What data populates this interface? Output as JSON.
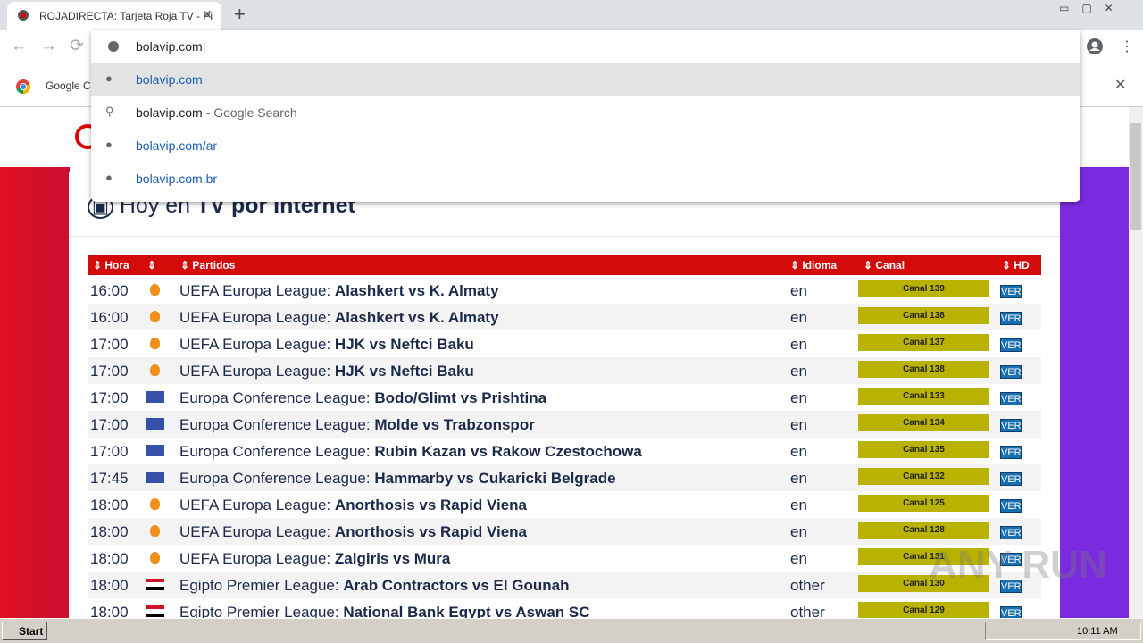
{
  "browser": {
    "tab_title": "ROJADIRECTA: Tarjeta Roja TV - Pi",
    "address": "bolavip.com",
    "suggestions": [
      {
        "text": "bolavip.com"
      },
      {
        "text": "bolavip.com",
        "suffix": "- Google Search"
      },
      {
        "text": "bolavip.com",
        "suffix": "/ar"
      },
      {
        "text": "bolavip.com",
        "suffix": ".br"
      }
    ],
    "infobar": "Google Cl"
  },
  "page": {
    "heading": {
      "light": "Hoy en",
      "mid": "TV",
      "bold": "por Internet"
    },
    "table": {
      "headers": [
        "Hora",
        "Partidos",
        "Idioma",
        "Canal",
        "HD"
      ],
      "rows": [
        {
          "time": "16:00",
          "icon": [
            "#f0901c"
          ],
          "league": "UEFA Europa League:",
          "match": "Alashkert vs K. Almaty",
          "lang": "en",
          "canal": "Canal 139",
          "hd": "VER"
        },
        {
          "time": "16:00",
          "icon": [
            "#f0901c"
          ],
          "league": "UEFA Europa League:",
          "match": "Alashkert vs K. Almaty",
          "lang": "en",
          "canal": "Canal 138",
          "hd": "VER"
        },
        {
          "time": "17:00",
          "icon": [
            "#f0901c"
          ],
          "league": "UEFA Europa League:",
          "match": "HJK vs Neftci Baku",
          "lang": "en",
          "canal": "Canal 137",
          "hd": "VER"
        },
        {
          "time": "17:00",
          "icon": [
            "#f0901c"
          ],
          "league": "UEFA Europa League:",
          "match": "HJK vs Neftci Baku",
          "lang": "en",
          "canal": "Canal 138",
          "hd": "VER"
        },
        {
          "time": "17:00",
          "icon": [
            "#3552a8"
          ],
          "league": "Europa Conference League:",
          "match": "Bodo/Glimt vs Prishtina",
          "lang": "en",
          "canal": "Canal 133",
          "hd": "VER"
        },
        {
          "time": "17:00",
          "icon": [
            "#3552a8"
          ],
          "league": "Europa Conference League:",
          "match": "Molde vs Trabzonspor",
          "lang": "en",
          "canal": "Canal 134",
          "hd": "VER"
        },
        {
          "time": "17:00",
          "icon": [
            "#3552a8"
          ],
          "league": "Europa Conference League:",
          "match": "Rubin Kazan vs Rakow Czestochowa",
          "lang": "en",
          "canal": "Canal 135",
          "hd": "VER"
        },
        {
          "time": "17:45",
          "icon": [
            "#3552a8"
          ],
          "league": "Europa Conference League:",
          "match": "Hammarby vs Cukaricki Belgrade",
          "lang": "en",
          "canal": "Canal 132",
          "hd": "VER"
        },
        {
          "time": "18:00",
          "icon": [
            "#f0901c"
          ],
          "league": "UEFA Europa League:",
          "match": "Anorthosis vs Rapid Viena",
          "lang": "en",
          "canal": "Canal 125",
          "hd": "VER"
        },
        {
          "time": "18:00",
          "icon": [
            "#f0901c"
          ],
          "league": "UEFA Europa League:",
          "match": "Anorthosis vs Rapid Viena",
          "lang": "en",
          "canal": "Canal 128",
          "hd": "VER"
        },
        {
          "time": "18:00",
          "icon": [
            "#f0901c"
          ],
          "league": "UEFA Europa League:",
          "match": "Zalgiris vs Mura",
          "lang": "en",
          "canal": "Canal 131",
          "hd": "VER"
        },
        {
          "time": "18:00",
          "icon": [
            "#ce1126",
            "#ffffff",
            "#000000"
          ],
          "league": "Egipto Premier League:",
          "match": "Arab Contractors vs El Gounah",
          "lang": "other",
          "canal": "Canal 130",
          "hd": "VER"
        },
        {
          "time": "18:00",
          "icon": [
            "#ce1126",
            "#ffffff",
            "#000000"
          ],
          "league": "Egipto Premier League:",
          "match": "National Bank Egypt vs Aswan SC",
          "lang": "other",
          "canal": "Canal 129",
          "hd": "VER"
        }
      ]
    }
  },
  "watermark": "ANY RUN",
  "taskbar": {
    "start": "Start",
    "clock": "10:11 AM"
  }
}
